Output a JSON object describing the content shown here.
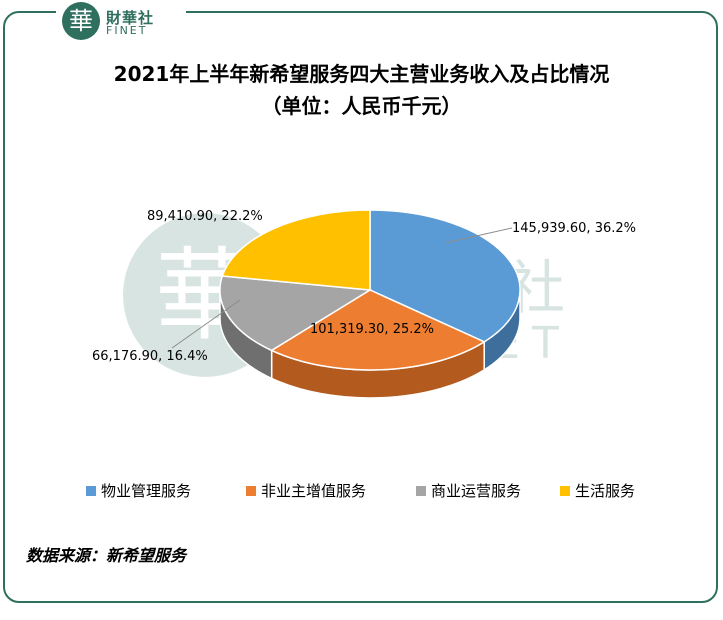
{
  "logo": {
    "glyph": "華",
    "name_cn": "財華社",
    "name_en": "FINET"
  },
  "watermark": {
    "glyph": "華",
    "name_cn": "財華社",
    "name_en": "FINET"
  },
  "title_line1": "2021年上半年新希望服务四大主营业务收入及占比情况",
  "title_line2": "（单位：人民币千元）",
  "source": "数据来源：新希望服务",
  "chart_data": {
    "type": "pie",
    "series": [
      {
        "name": "物业管理服务",
        "value": 145939.6,
        "percent": 36.2,
        "label": "145,939.60, 36.2%",
        "color": "#5b9bd5",
        "side": "#3e6f9c"
      },
      {
        "name": "非业主增值服务",
        "value": 101319.3,
        "percent": 25.2,
        "label": "101,319.30, 25.2%",
        "color": "#ed7d31",
        "side": "#b35a1e"
      },
      {
        "name": "商业运营服务",
        "value": 66176.9,
        "percent": 16.4,
        "label": "66,176.90, 16.4%",
        "color": "#a5a5a5",
        "side": "#6f6f6f"
      },
      {
        "name": "生活服务",
        "value": 89410.9,
        "percent": 22.2,
        "label": "89,410.90, 22.2%",
        "color": "#ffc000",
        "side": "#b88a00"
      }
    ],
    "legend_position": "bottom"
  }
}
